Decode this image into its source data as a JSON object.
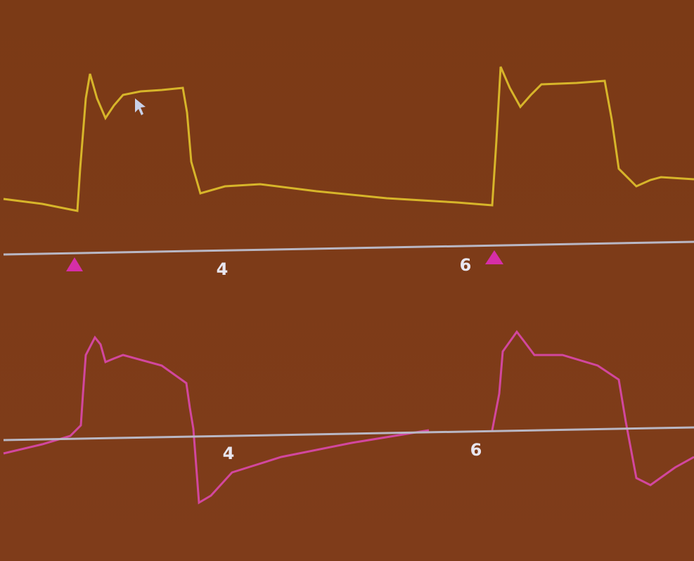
{
  "panels": [
    {
      "ticks": [
        "4",
        "6"
      ]
    },
    {
      "ticks": [
        "4",
        "6"
      ]
    }
  ]
}
